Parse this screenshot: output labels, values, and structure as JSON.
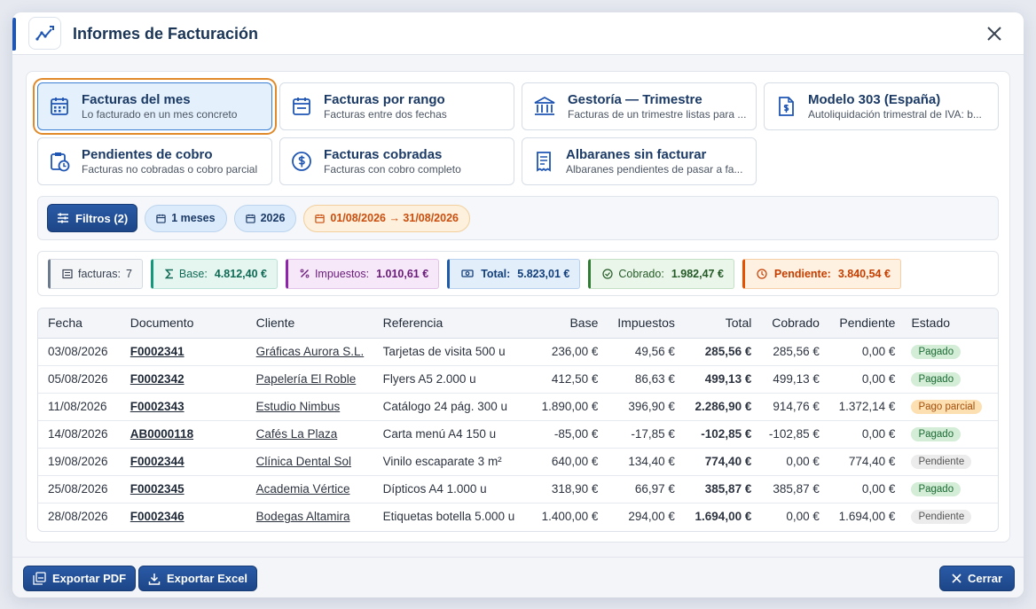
{
  "dialog": {
    "title": "Informes de Facturación"
  },
  "reports": [
    {
      "title": "Facturas del mes",
      "subtitle": "Lo facturado en un mes concreto"
    },
    {
      "title": "Facturas por rango",
      "subtitle": "Facturas entre dos fechas"
    },
    {
      "title": "Gestoría — Trimestre",
      "subtitle": "Facturas de un trimestre listas para ..."
    },
    {
      "title": "Modelo 303 (España)",
      "subtitle": "Autoliquidación trimestral de IVA: b..."
    },
    {
      "title": "Pendientes de cobro",
      "subtitle": "Facturas no cobradas o cobro parcial"
    },
    {
      "title": "Facturas cobradas",
      "subtitle": "Facturas con cobro completo"
    },
    {
      "title": "Albaranes sin facturar",
      "subtitle": "Albaranes pendientes de pasar a fa..."
    }
  ],
  "filters": {
    "button": "Filtros (2)",
    "chips": [
      "1 meses",
      "2026",
      "01/08/2026 → 31/08/2026"
    ]
  },
  "summary": [
    {
      "label": "facturas:",
      "value": "7"
    },
    {
      "label": "Base:",
      "value": "4.812,40 €"
    },
    {
      "label": "Impuestos:",
      "value": "1.010,61 €"
    },
    {
      "label": "Total:",
      "value": "5.823,01 €"
    },
    {
      "label": "Cobrado:",
      "value": "1.982,47 €"
    },
    {
      "label": "Pendiente:",
      "value": "3.840,54 €"
    }
  ],
  "table": {
    "columns": [
      "Fecha",
      "Documento",
      "Cliente",
      "Referencia",
      "Base",
      "Impuestos",
      "Total",
      "Cobrado",
      "Pendiente",
      "Estado"
    ],
    "rows": [
      [
        "03/08/2026",
        "F0002341",
        "Gráficas Aurora S.L.",
        "Tarjetas de visita 500 u",
        "236,00 €",
        "49,56 €",
        "285,56 €",
        "285,56 €",
        "0,00 €",
        "Pagado"
      ],
      [
        "05/08/2026",
        "F0002342",
        "Papelería El Roble",
        "Flyers A5 2.000 u",
        "412,50 €",
        "86,63 €",
        "499,13 €",
        "499,13 €",
        "0,00 €",
        "Pagado"
      ],
      [
        "11/08/2026",
        "F0002343",
        "Estudio Nimbus",
        "Catálogo 24 pág. 300 u",
        "1.890,00 €",
        "396,90 €",
        "2.286,90 €",
        "914,76 €",
        "1.372,14 €",
        "Pago parcial"
      ],
      [
        "14/08/2026",
        "AB0000118",
        "Cafés La Plaza",
        "Carta menú A4 150 u",
        "-85,00 €",
        "-17,85 €",
        "-102,85 €",
        "-102,85 €",
        "0,00 €",
        "Pagado"
      ],
      [
        "19/08/2026",
        "F0002344",
        "Clínica Dental Sol",
        "Vinilo escaparate 3 m²",
        "640,00 €",
        "134,40 €",
        "774,40 €",
        "0,00 €",
        "774,40 €",
        "Pendiente"
      ],
      [
        "25/08/2026",
        "F0002345",
        "Academia Vértice",
        "Dípticos A4 1.000 u",
        "318,90 €",
        "66,97 €",
        "385,87 €",
        "385,87 €",
        "0,00 €",
        "Pagado"
      ],
      [
        "28/08/2026",
        "F0002346",
        "Bodegas Altamira",
        "Etiquetas botella 5.000 u",
        "1.400,00 €",
        "294,00 €",
        "1.694,00 €",
        "0,00 €",
        "1.694,00 €",
        "Pendiente"
      ]
    ]
  },
  "footer": {
    "export_pdf": "Exportar PDF",
    "export_excel": "Exportar Excel",
    "close": "Cerrar"
  }
}
